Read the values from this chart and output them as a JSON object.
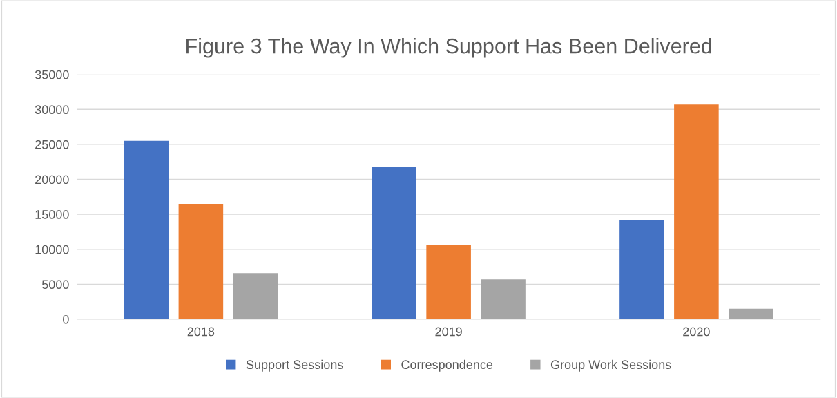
{
  "chart_data": {
    "type": "bar",
    "title": "Figure 3 The Way In Which Support Has Been Delivered",
    "categories": [
      "2018",
      "2019",
      "2020"
    ],
    "series": [
      {
        "name": "Support Sessions",
        "color": "#4472c4",
        "values": [
          25500,
          21800,
          14200
        ]
      },
      {
        "name": "Correspondence",
        "color": "#ed7d31",
        "values": [
          16500,
          10600,
          30700
        ]
      },
      {
        "name": "Group Work Sessions",
        "color": "#a5a5a5",
        "values": [
          6600,
          5700,
          1500
        ]
      }
    ],
    "ylim": [
      0,
      35000
    ],
    "yticks": [
      0,
      5000,
      10000,
      15000,
      20000,
      25000,
      30000,
      35000
    ],
    "grid": "y",
    "legend": "bottom"
  }
}
